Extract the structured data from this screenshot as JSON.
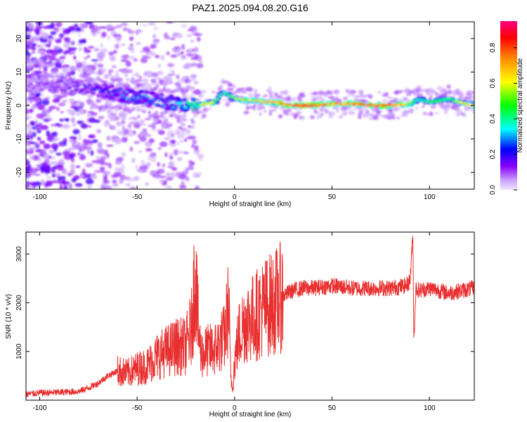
{
  "title": "PAZ1.2025.094.08.20.G16",
  "chart_data": [
    {
      "type": "heatmap",
      "title": "PAZ1.2025.094.08.20.G16",
      "xlabel": "Height of straight line (km)",
      "ylabel": "Frequency (Hz)",
      "xlim": [
        -107,
        123
      ],
      "ylim": [
        -25,
        25
      ],
      "xticks": [
        -100,
        -50,
        0,
        50,
        100
      ],
      "yticks": [
        -20,
        -10,
        0,
        10,
        20
      ],
      "colorbar": {
        "label": "Normalized spectral amplitude",
        "range": [
          0,
          0.95
        ],
        "ticks": [
          0.0,
          0.2,
          0.4,
          0.6,
          0.8
        ],
        "colormap": [
          "#f0e6ff",
          "#8a00ff",
          "#0000ff",
          "#00ffff",
          "#00ff00",
          "#ffff00",
          "#ff8800",
          "#ff0000",
          "#ff0080"
        ]
      },
      "ridge": {
        "description_points_x": [
          -107,
          -90,
          -75,
          -65,
          -55,
          -45,
          -35,
          -25,
          -20,
          -10,
          -6,
          0,
          10,
          20,
          30,
          40,
          50,
          60,
          70,
          80,
          90,
          95,
          100,
          105,
          110,
          115,
          123
        ],
        "frequency_hz": [
          6,
          6,
          5,
          4,
          3,
          2,
          1,
          0.5,
          0,
          1,
          4,
          2,
          1.5,
          1,
          0,
          0,
          0.5,
          0.5,
          0,
          0,
          0.5,
          2,
          1,
          1.5,
          2,
          1,
          0
        ],
        "peak_amplitude": [
          0.1,
          0.15,
          0.2,
          0.25,
          0.3,
          0.3,
          0.3,
          0.4,
          0.6,
          0.6,
          0.35,
          0.6,
          0.65,
          0.75,
          0.9,
          0.9,
          0.8,
          0.8,
          0.85,
          0.9,
          0.6,
          0.4,
          0.5,
          0.5,
          0.45,
          0.6,
          0.7
        ]
      }
    },
    {
      "type": "line",
      "xlabel": "Height of straight line (km)",
      "ylabel": "SNR (10 * v/v)",
      "xlim": [
        -107,
        123
      ],
      "ylim": [
        0,
        3450
      ],
      "xticks": [
        -100,
        -50,
        0,
        50,
        100
      ],
      "yticks": [
        1000,
        2000,
        3000
      ],
      "color": "#e83030",
      "series": [
        {
          "x": [
            -107,
            -100,
            -90,
            -80,
            -75,
            -70,
            -65,
            -60,
            -55,
            -50,
            -45,
            -40,
            -35,
            -30,
            -25,
            -22,
            -20,
            -19,
            -18,
            -17,
            -15,
            -10,
            -5,
            -3,
            -2,
            -1,
            0,
            2,
            5,
            10,
            15,
            20,
            25,
            30,
            35,
            40,
            50,
            60,
            70,
            80,
            88,
            90,
            91.5,
            92,
            93,
            95,
            100,
            110,
            123
          ],
          "y": [
            120,
            150,
            160,
            180,
            250,
            350,
            500,
            600,
            550,
            650,
            700,
            900,
            1000,
            1100,
            1100,
            1500,
            2800,
            1700,
            1200,
            950,
            1000,
            1050,
            1300,
            2000,
            500,
            250,
            800,
            1300,
            1600,
            1700,
            1900,
            2000,
            2150,
            2250,
            2300,
            2300,
            2350,
            2300,
            2300,
            2300,
            2350,
            2450,
            3400,
            1200,
            2300,
            2250,
            2300,
            2200,
            2300
          ]
        }
      ]
    }
  ]
}
